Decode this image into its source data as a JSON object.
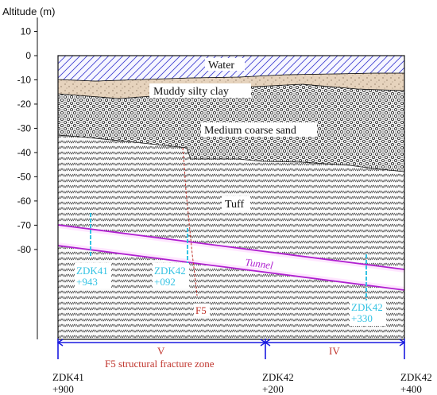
{
  "figure": {
    "y_axis_label": "Altitude (m)",
    "y_ticks": [
      10,
      0,
      -10,
      -20,
      -30,
      -40,
      -50,
      -60,
      -70,
      -80
    ],
    "layers": {
      "water": "Water",
      "clay": "Muddy silty clay",
      "sand": "Medium coarse sand",
      "tuff": "Tuff"
    },
    "tunnel_label": "Tunnel",
    "fault_label": "F5",
    "boreholes": [
      {
        "line1": "ZDK41",
        "line2": "+943"
      },
      {
        "line1": "ZDK42",
        "line2": "+092"
      },
      {
        "line1": "ZDK42",
        "line2": "+330"
      }
    ],
    "zones": [
      {
        "grade": "V",
        "description": "F5 structural fracture zone"
      },
      {
        "grade": "IV",
        "description": ""
      }
    ],
    "stations": [
      {
        "line1": "ZDK41",
        "line2": "+900"
      },
      {
        "line1": "ZDK42",
        "line2": "+200"
      },
      {
        "line1": "ZDK42",
        "line2": "+400"
      }
    ],
    "colors": {
      "water_hatch": "#3a3ad0",
      "clay_fill": "#e6d3bd",
      "tunnel_line": "#b020d0",
      "tunnel_fill": "#ffe0ff",
      "borehole": "#34c3e3",
      "fault": "#c0342c",
      "zone_line": "#1a1ae0",
      "zone_text": "#c0342c"
    }
  }
}
